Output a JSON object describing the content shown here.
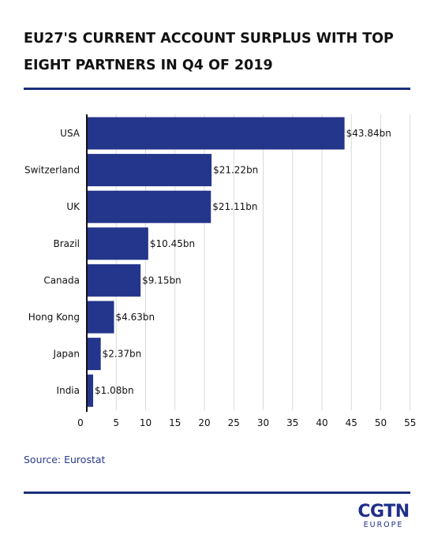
{
  "title": "EU27'S CURRENT ACCOUNT SURPLUS WITH TOP EIGHT PARTNERS IN Q4 OF 2019",
  "source": "Source: Eurostat",
  "logo": {
    "brand": "CGTN",
    "region": "EUROPE"
  },
  "colors": {
    "bar": "#24358c",
    "rule": "#1a2f7c",
    "grid": "#d9d9d9",
    "axis": "#111111"
  },
  "chart_data": {
    "type": "bar",
    "orientation": "horizontal",
    "categories": [
      "USA",
      "Switzerland",
      "UK",
      "Brazil",
      "Canada",
      "Hong Kong",
      "Japan",
      "India"
    ],
    "values": [
      43.84,
      21.22,
      21.11,
      10.45,
      9.15,
      4.63,
      2.37,
      1.08
    ],
    "data_labels": [
      "$43.84bn",
      "$21.22bn",
      "$21.11bn",
      "$10.45bn",
      "$9.15bn",
      "$4.63bn",
      "$2.37bn",
      "$1.08bn"
    ],
    "xlim": [
      0,
      55
    ],
    "xticks": [
      0,
      5,
      10,
      15,
      20,
      25,
      30,
      35,
      40,
      45,
      50,
      55
    ],
    "grid": true,
    "legend": "none"
  }
}
